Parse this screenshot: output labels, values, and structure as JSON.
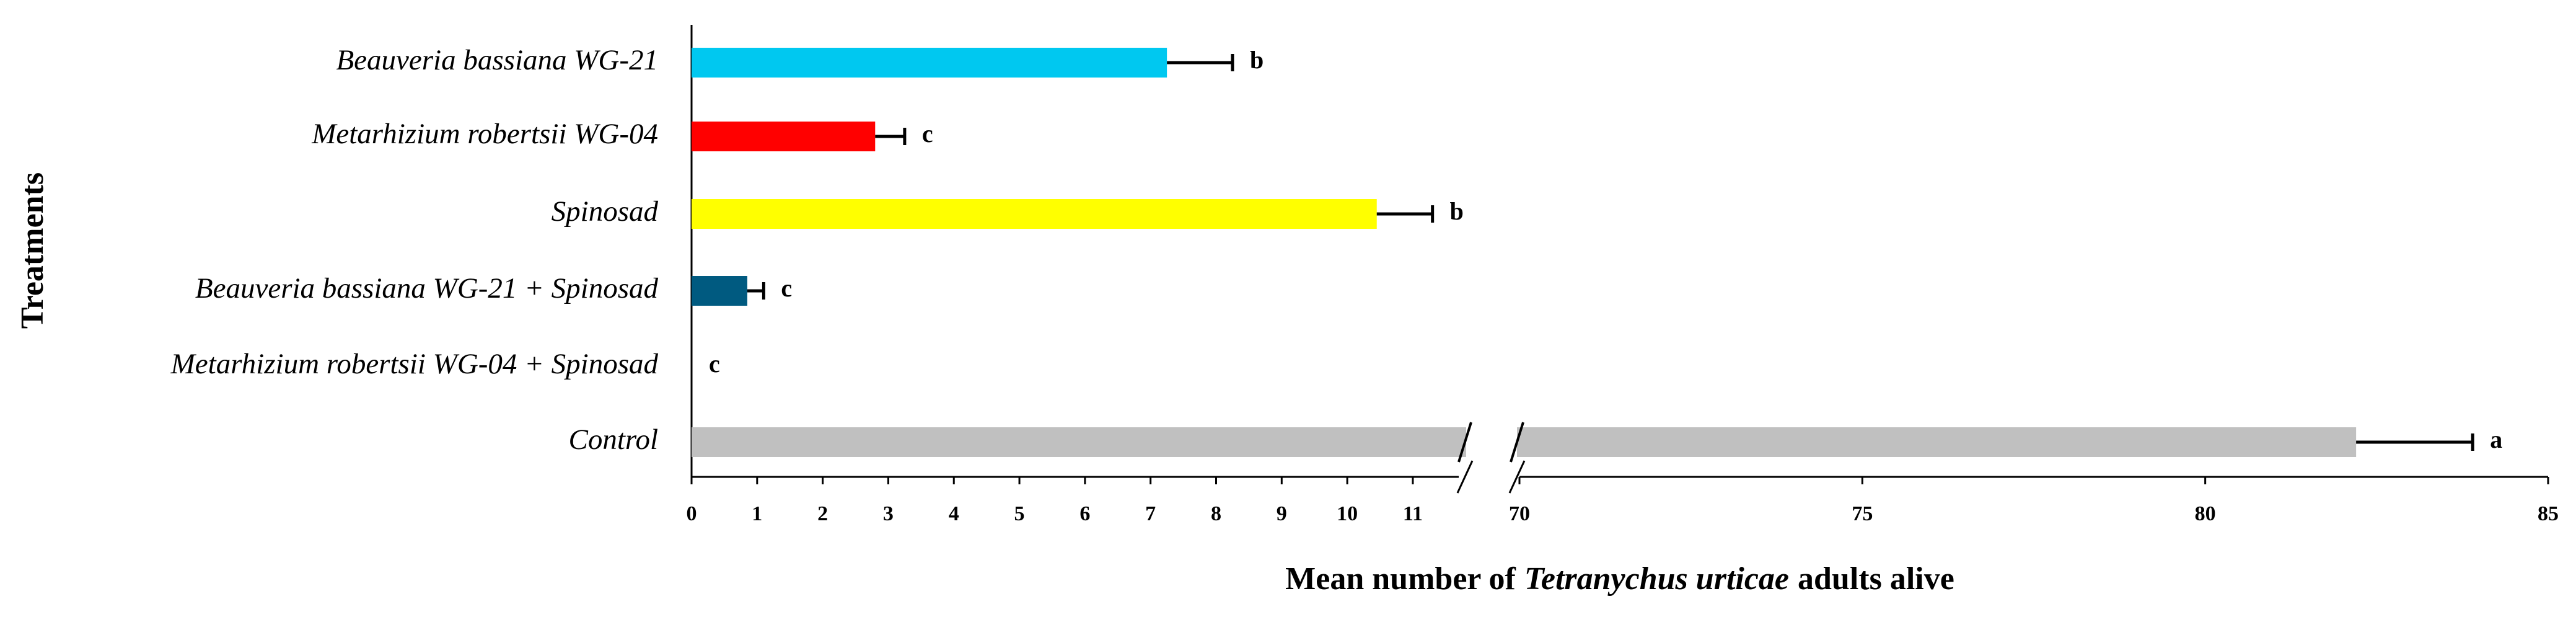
{
  "chart_data": {
    "type": "bar",
    "orientation": "horizontal",
    "ylabel": "Treatments",
    "xlabel": [
      "Mean number of",
      "Tetranychus urticae",
      "adults alive"
    ],
    "categories": [
      "Beauveria bassiana WG-21",
      "Metarhizium robertsii WG-04",
      "Spinosad",
      "Beauveria bassiana WG-21 + Spinosad",
      "Metarhizium robertsii WG-04 + Spinosad",
      "Control"
    ],
    "values": [
      7.25,
      2.8,
      10.45,
      0.85,
      0,
      82.2
    ],
    "errors": [
      1.0,
      0.45,
      0.85,
      0.25,
      null,
      1.7
    ],
    "colors": [
      "#00c8f0",
      "#ff0000",
      "#ffff00",
      "#005a80",
      null,
      "#c0c0c0"
    ],
    "significance_letters": [
      "b",
      "c",
      "b",
      "c",
      "c",
      "a"
    ],
    "xlim": [
      0,
      85
    ],
    "x_break": [
      11.7,
      70
    ],
    "xticks": [
      0,
      1,
      2,
      3,
      4,
      5,
      6,
      7,
      8,
      9,
      10,
      11,
      70,
      75,
      80,
      85
    ]
  }
}
